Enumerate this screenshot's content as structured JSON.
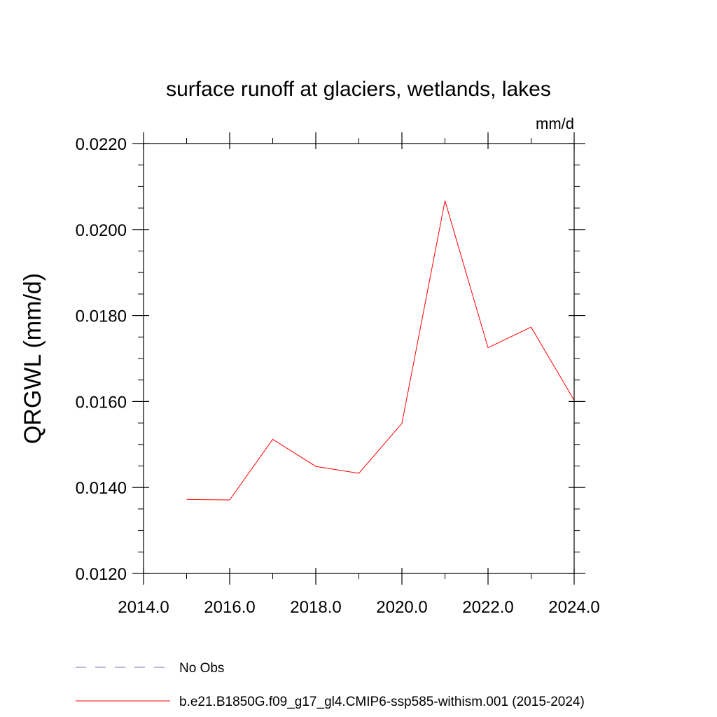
{
  "chart_data": {
    "type": "line",
    "title": "surface runoff at glaciers, wetlands, lakes",
    "units_label": "mm/d",
    "ylabel": "QRGWL  (mm/d)",
    "xlabel": "",
    "xlim": [
      2014.0,
      2024.0
    ],
    "ylim": [
      0.012,
      0.022
    ],
    "x_ticks": [
      2014.0,
      2016.0,
      2018.0,
      2020.0,
      2022.0,
      2024.0
    ],
    "x_tick_labels": [
      "2014.0",
      "2016.0",
      "2018.0",
      "2020.0",
      "2022.0",
      "2024.0"
    ],
    "y_ticks": [
      0.012,
      0.014,
      0.016,
      0.018,
      0.02,
      0.022
    ],
    "y_tick_labels": [
      "0.0120",
      "0.0140",
      "0.0160",
      "0.0180",
      "0.0200",
      "0.0220"
    ],
    "grid": false,
    "legend_position": "bottom",
    "series": [
      {
        "name": "No Obs",
        "color": "#7f6fb5",
        "dash": "dashed",
        "x": [],
        "y": []
      },
      {
        "name": "b.e21.B1850G.f09_g17_gl4.CMIP6-ssp585-withism.001 (2015-2024)",
        "color": "#ff0000",
        "dash": "solid",
        "x": [
          2015,
          2016,
          2017,
          2018,
          2019,
          2020,
          2021,
          2022,
          2023,
          2024
        ],
        "y": [
          0.01372,
          0.01371,
          0.01512,
          0.01449,
          0.01433,
          0.01549,
          0.02067,
          0.01725,
          0.01773,
          0.01603
        ]
      }
    ]
  }
}
